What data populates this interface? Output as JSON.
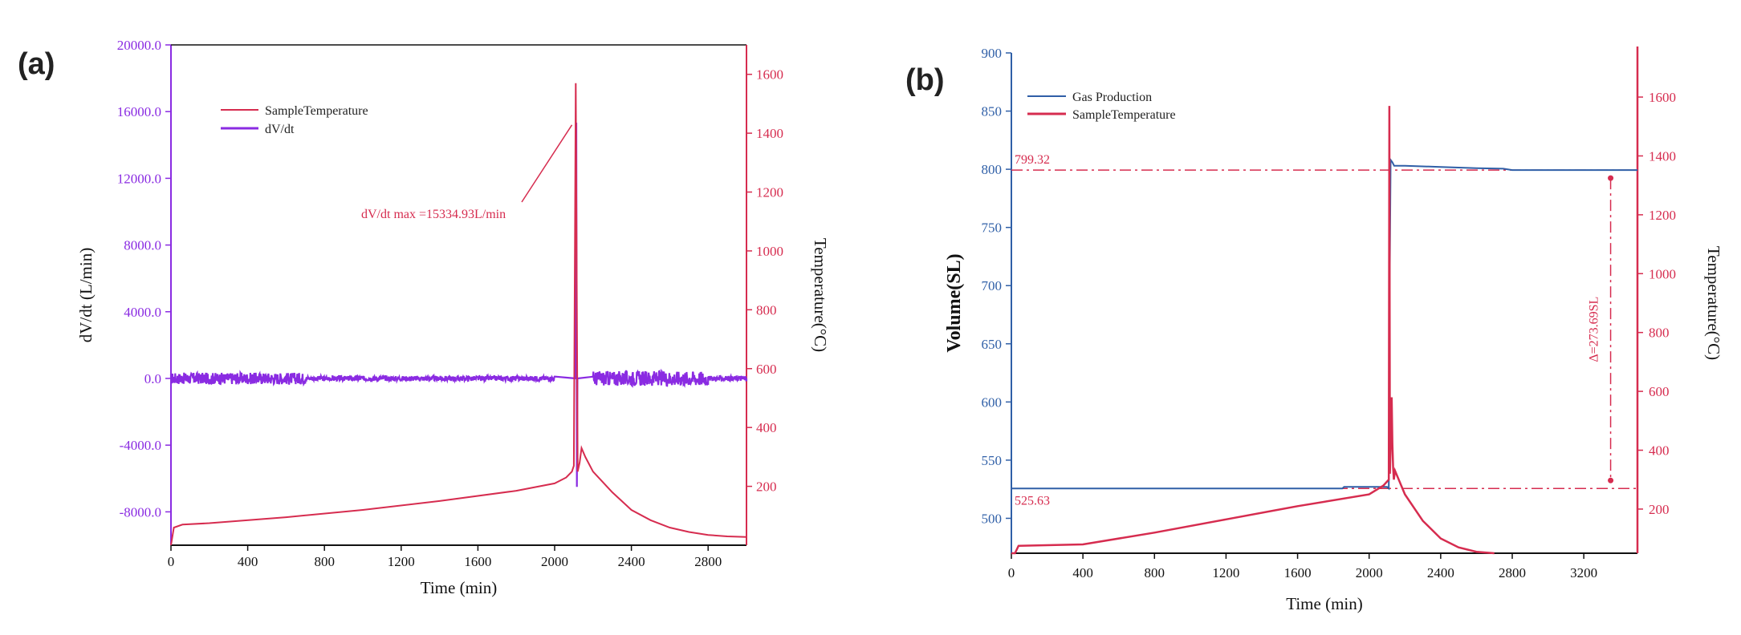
{
  "colors": {
    "purple": "#8a2be2",
    "red": "#d62c4f",
    "blue": "#2f5fa7",
    "black": "#111111"
  },
  "chart_data": [
    {
      "panel": "(a)",
      "type": "line",
      "xlabel": "Time (min)",
      "ylabel": "dV/dt (L/min)",
      "y2label": "Temperature(°C)",
      "xlim": [
        0,
        3000
      ],
      "ylim": [
        -10000,
        20000
      ],
      "y2lim": [
        0,
        1700
      ],
      "x_ticks": [
        0,
        400,
        800,
        1200,
        1600,
        2000,
        2400,
        2800
      ],
      "x_tick_labels": [
        "0",
        "400",
        "800",
        "1200",
        "1600",
        "2000",
        "2400",
        "2800"
      ],
      "y_ticks": [
        -8000,
        -4000,
        0,
        4000,
        8000,
        12000,
        16000,
        20000
      ],
      "y_tick_labels": [
        "-8000.0",
        "-4000.0",
        "0.0",
        "4000.0",
        "8000.0",
        "12000.0",
        "16000.0",
        "20000.0"
      ],
      "y2_ticks": [
        200,
        400,
        600,
        800,
        1000,
        1200,
        1400,
        1600
      ],
      "y2_tick_labels": [
        "200",
        "400",
        "600",
        "800",
        "1000",
        "1200",
        "1400",
        "1600"
      ],
      "legend": [
        "SampleTemperature",
        "dV/dt"
      ],
      "annotation": "dV/dt max =15334.93L/min",
      "series": [
        {
          "name": "SampleTemperature",
          "axis": "right",
          "color": "#d62c4f",
          "x": [
            0,
            15,
            60,
            200,
            600,
            1000,
            1400,
            1800,
            2000,
            2060,
            2090,
            2100,
            2110,
            2120,
            2130,
            2140,
            2160,
            2200,
            2300,
            2400,
            2500,
            2600,
            2700,
            2800,
            2900,
            3000
          ],
          "y": [
            0,
            60,
            70,
            75,
            95,
            120,
            150,
            185,
            210,
            230,
            250,
            270,
            1570,
            250,
            280,
            330,
            300,
            250,
            180,
            120,
            85,
            60,
            45,
            35,
            30,
            28
          ]
        },
        {
          "name": "dV/dt",
          "axis": "left",
          "color": "#8a2be2",
          "x": [
            0,
            2110,
            2113,
            2116,
            2119,
            3000
          ],
          "y": [
            0,
            0,
            15335,
            -6500,
            0,
            0
          ],
          "noise_ranges": [
            [
              0,
              700,
              350
            ],
            [
              700,
              2000,
              150
            ],
            [
              2200,
              2800,
              450
            ],
            [
              2800,
              3000,
              150
            ]
          ]
        }
      ]
    },
    {
      "panel": "(b)",
      "type": "line",
      "xlabel": "Time (min)",
      "ylabel": "Volume(SL)",
      "y2label": "Temperature(°C)",
      "xlim": [
        0,
        3500
      ],
      "ylim": [
        470,
        900
      ],
      "y2lim": [
        50,
        1750
      ],
      "x_ticks": [
        0,
        400,
        800,
        1200,
        1600,
        2000,
        2400,
        2800,
        3200
      ],
      "x_tick_labels": [
        "0",
        "400",
        "800",
        "1200",
        "1600",
        "2000",
        "2400",
        "2800",
        "3200"
      ],
      "y_ticks": [
        500,
        550,
        600,
        650,
        700,
        750,
        800,
        850,
        900
      ],
      "y_tick_labels": [
        "500",
        "550",
        "600",
        "650",
        "700",
        "750",
        "800",
        "850",
        "900"
      ],
      "y2_ticks": [
        200,
        400,
        600,
        800,
        1000,
        1200,
        1400,
        1600
      ],
      "y2_tick_labels": [
        "200",
        "400",
        "600",
        "800",
        "1000",
        "1200",
        "1400",
        "1600"
      ],
      "legend": [
        "Gas Production",
        "SampleTemperature"
      ],
      "annotations": {
        "upper_level_label": "799.32",
        "lower_level_label": "525.63",
        "difference_label": "Δ=273.69SL"
      },
      "reference_levels": [
        799.32,
        525.63
      ],
      "series": [
        {
          "name": "Gas Production",
          "axis": "left",
          "color": "#2f5fa7",
          "x": [
            0,
            1850,
            1860,
            2100,
            2110,
            2115,
            2120,
            2130,
            2140,
            2200,
            2400,
            2600,
            2750,
            2800,
            3500
          ],
          "y": [
            525.63,
            525.63,
            527,
            527,
            525.63,
            700,
            808,
            806,
            803,
            803,
            802,
            801,
            800.5,
            799.32,
            799.32
          ]
        },
        {
          "name": "SampleTemperature",
          "axis": "right",
          "color": "#d62c4f",
          "x": [
            0,
            20,
            40,
            400,
            800,
            1200,
            1600,
            2000,
            2080,
            2110,
            2113,
            2116,
            2120,
            2126,
            2130,
            2134,
            2138,
            2145,
            2200,
            2300,
            2400,
            2500,
            2600,
            2700
          ],
          "y": [
            50,
            50,
            75,
            80,
            120,
            165,
            210,
            250,
            280,
            300,
            1570,
            320,
            420,
            580,
            420,
            340,
            300,
            330,
            250,
            160,
            100,
            70,
            55,
            50
          ]
        }
      ]
    }
  ]
}
